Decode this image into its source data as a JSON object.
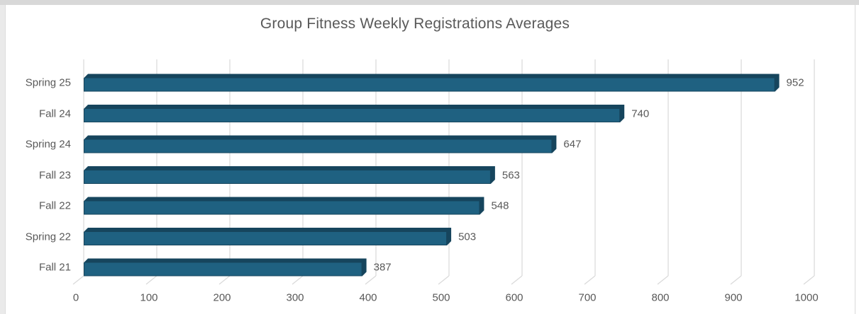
{
  "title": "Group Fitness Weekly Registrations Averages",
  "chart_data": {
    "type": "bar",
    "orientation": "horizontal",
    "title": "Group Fitness Weekly Registrations Averages",
    "categories": [
      "Spring 25",
      "Fall 24",
      "Spring 24",
      "Fall 23",
      "Fall 22",
      "Spring 22",
      "Fall 21"
    ],
    "values": [
      952,
      740,
      647,
      563,
      548,
      503,
      387
    ],
    "data_labels": [
      "952",
      "740",
      "647",
      "563",
      "548",
      "503",
      "387"
    ],
    "xlabel": "",
    "ylabel": "",
    "xlim": [
      0,
      1000
    ],
    "x_ticks": [
      "0",
      "100",
      "200",
      "300",
      "400",
      "500",
      "600",
      "700",
      "800",
      "900",
      "1000"
    ],
    "grid": true,
    "legend": false,
    "style": "3d-bevel-bars",
    "colors": {
      "bar_body": "#1F6181",
      "bar_edge": "#16455D",
      "gridline": "#D9D9D9",
      "text": "#595959",
      "background": "#FFFFFF",
      "frame": "#D8D8D8"
    }
  }
}
